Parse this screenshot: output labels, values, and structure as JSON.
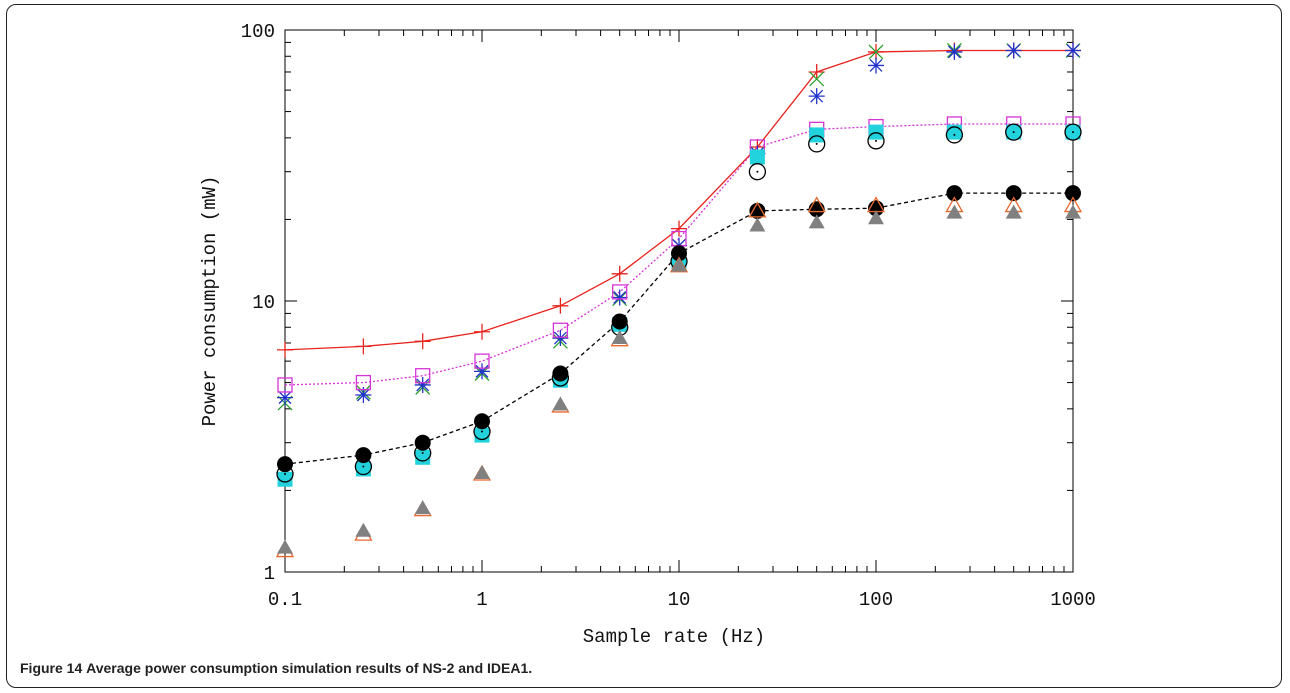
{
  "caption": {
    "label": "Figure 14",
    "text": "Average power consumption simulation results of NS-2 and IDEA1."
  },
  "chart_data": {
    "type": "scatter",
    "xlabel": "Sample rate (Hz)",
    "ylabel": "Power consumption (mW)",
    "xscale": "log",
    "yscale": "log",
    "xlim": [
      0.1,
      1000
    ],
    "ylim": [
      1,
      100
    ],
    "xticks": [
      "0.1",
      "1",
      "10",
      "100",
      "1000"
    ],
    "yticks": [
      "1",
      "10",
      "100"
    ],
    "grid": false,
    "legend": "none",
    "x": [
      0.1,
      0.25,
      0.5,
      1,
      2.5,
      5,
      10,
      25,
      50,
      100,
      250,
      500,
      1000
    ],
    "series": [
      {
        "marker": "plus",
        "color": "#e8231d",
        "line": "solid",
        "values": [
          6.6,
          6.8,
          7.1,
          7.7,
          9.6,
          12.6,
          18.5,
          37,
          70,
          83,
          84,
          84,
          84
        ]
      },
      {
        "marker": "x",
        "color": "#2ca02c",
        "line": "none",
        "values": [
          4.2,
          4.6,
          4.8,
          5.4,
          7.1,
          10.2,
          16,
          35,
          66,
          83,
          84,
          84,
          84
        ]
      },
      {
        "marker": "asterisk",
        "color": "#2233cc",
        "line": "none",
        "values": [
          4.4,
          4.5,
          4.9,
          5.5,
          7.3,
          10.3,
          16,
          35,
          57,
          74,
          83,
          84,
          84
        ]
      },
      {
        "marker": "square-open",
        "color": "#d633d6",
        "line": "dotted",
        "values": [
          4.9,
          5.0,
          5.3,
          6.0,
          7.8,
          10.8,
          17,
          37,
          43,
          44,
          45,
          45,
          45
        ]
      },
      {
        "marker": "square-filled",
        "color": "#22d3dd",
        "line": "none",
        "values": [
          2.2,
          2.4,
          2.65,
          3.2,
          5.1,
          8.2,
          14,
          34,
          41,
          42,
          42,
          42,
          42
        ]
      },
      {
        "marker": "circle-dot",
        "color": "#000000",
        "line": "none",
        "values": [
          2.3,
          2.45,
          2.75,
          3.3,
          5.2,
          8.0,
          14,
          30,
          38,
          39,
          41,
          42,
          42
        ]
      },
      {
        "marker": "circle-filled",
        "color": "#000000",
        "line": "dashed",
        "values": [
          2.5,
          2.7,
          3.0,
          3.6,
          5.4,
          8.4,
          15,
          21.5,
          21.8,
          22,
          25,
          25,
          25
        ]
      },
      {
        "marker": "triangle-open",
        "color": "#e8692d",
        "line": "none",
        "values": [
          1.2,
          1.38,
          1.7,
          2.3,
          4.1,
          7.2,
          13.5,
          21.5,
          22.5,
          22.5,
          22.5,
          22.5,
          22.5
        ]
      },
      {
        "marker": "triangle-filled",
        "color": "#808080",
        "line": "none",
        "values": [
          1.23,
          1.42,
          1.72,
          2.32,
          4.15,
          7.3,
          13.5,
          19,
          19.5,
          20.2,
          21.2,
          21.2,
          21.2
        ]
      }
    ]
  }
}
